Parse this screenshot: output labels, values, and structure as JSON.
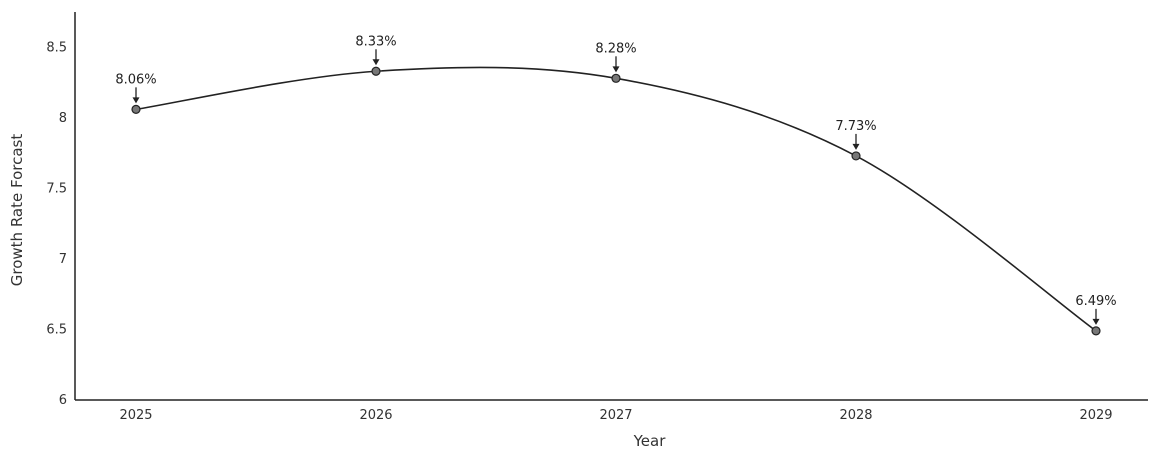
{
  "chart_data": {
    "type": "line",
    "xlabel": "Year",
    "ylabel": "Growth Rate Forcast",
    "categories": [
      "2025",
      "2026",
      "2027",
      "2028",
      "2029"
    ],
    "series": [
      {
        "values": [
          8.06,
          8.33,
          8.28,
          7.73,
          6.49
        ]
      }
    ],
    "data_labels": [
      "8.06%",
      "8.33%",
      "8.28%",
      "7.73%",
      "6.49%"
    ],
    "ylim": [
      6,
      8.75
    ],
    "yticks": [
      "6",
      "6.5",
      "7",
      "7.5",
      "8",
      "8.5"
    ],
    "grid": false,
    "smooth": true,
    "colors": {
      "line": "#222222",
      "marker": "#777777"
    }
  }
}
